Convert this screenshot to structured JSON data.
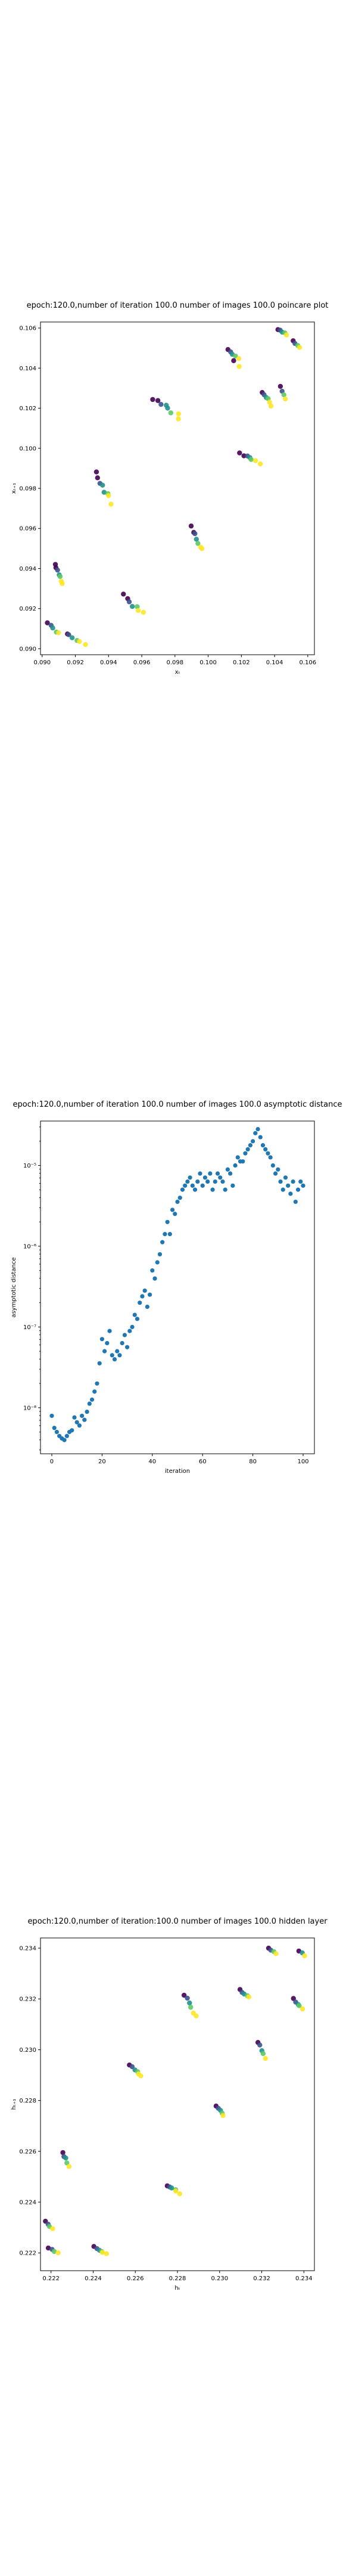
{
  "chart_data": [
    {
      "type": "scatter",
      "title": "epoch:120.0,number of iteration 100.0 number of images 100.0 poincare plot",
      "xlabel": "xₜ",
      "ylabel": "xₜ₊₁",
      "xlim": [
        0.0899,
        0.1064
      ],
      "ylim": [
        0.0897,
        0.1063
      ],
      "x_ticks": [
        "0.090",
        "0.092",
        "0.094",
        "0.096",
        "0.098",
        "0.100",
        "0.102",
        "0.104",
        "0.106"
      ],
      "y_ticks": [
        "0.090",
        "0.092",
        "0.094",
        "0.096",
        "0.098",
        "0.100",
        "0.102",
        "0.104",
        "0.106"
      ],
      "x_tick_values": [
        0.09,
        0.092,
        0.094,
        0.096,
        0.098,
        0.1,
        0.102,
        0.104,
        0.106
      ],
      "y_tick_values": [
        0.09,
        0.092,
        0.094,
        0.096,
        0.098,
        0.1,
        0.102,
        0.104,
        0.106
      ],
      "grid": false,
      "colormap": [
        "#440154",
        "#3b528b",
        "#21908d",
        "#5dc863",
        "#fde725"
      ],
      "clusters": [
        {
          "x": 0.0907,
          "y": 0.091,
          "dx": 0.00035,
          "dy": 0.00025,
          "n": 5
        },
        {
          "x": 0.091,
          "y": 0.0937,
          "dx": 0.00025,
          "dy": 0.0005,
          "n": 7
        },
        {
          "x": 0.092,
          "y": 0.0905,
          "dx": 0.00055,
          "dy": 0.00025,
          "n": 6
        },
        {
          "x": 0.0937,
          "y": 0.098,
          "dx": 0.00045,
          "dy": 0.0007,
          "n": 8
        },
        {
          "x": 0.0955,
          "y": 0.0922,
          "dx": 0.00055,
          "dy": 0.00045,
          "n": 7
        },
        {
          "x": 0.0975,
          "y": 0.102,
          "dx": 0.0008,
          "dy": 0.00045,
          "n": 8
        },
        {
          "x": 0.0993,
          "y": 0.0955,
          "dx": 0.0003,
          "dy": 0.00055,
          "n": 7
        },
        {
          "x": 0.1015,
          "y": 0.1047,
          "dx": 0.0003,
          "dy": 0.00025,
          "n": 5
        },
        {
          "x": 0.1025,
          "y": 0.0995,
          "dx": 0.00055,
          "dy": 0.00025,
          "n": 7
        },
        {
          "x": 0.1017,
          "y": 0.1042,
          "dx": 0.00015,
          "dy": 0.00015,
          "n": 2
        },
        {
          "x": 0.1035,
          "y": 0.1025,
          "dx": 0.0003,
          "dy": 0.00035,
          "n": 6
        },
        {
          "x": 0.1045,
          "y": 0.1058,
          "dx": 0.00025,
          "dy": 0.00015,
          "n": 5
        },
        {
          "x": 0.1045,
          "y": 0.1028,
          "dx": 0.00015,
          "dy": 0.0003,
          "n": 4
        },
        {
          "x": 0.1053,
          "y": 0.1052,
          "dx": 0.0002,
          "dy": 0.00015,
          "n": 4
        }
      ]
    },
    {
      "type": "scatter",
      "title": "epoch:120.0,number of iteration 100.0  number of images 100.0 asymptotic distance",
      "xlabel": "iteration",
      "ylabel": "asymptotic distance",
      "xlim": [
        -4.5,
        104.5
      ],
      "y_scale": "log",
      "ylim_log10": [
        -8.57,
        -4.45
      ],
      "x_ticks": [
        "0",
        "20",
        "40",
        "60",
        "80",
        "100"
      ],
      "x_tick_values": [
        0,
        20,
        40,
        60,
        80,
        100
      ],
      "y_ticks": [
        "10⁻⁸",
        "10⁻⁷",
        "10⁻⁶",
        "10⁻⁵"
      ],
      "y_tick_exponents": [
        -8,
        -7,
        -6,
        -5
      ],
      "grid": false,
      "color": "#1f77b4",
      "x": [
        0,
        1,
        2,
        3,
        4,
        5,
        6,
        7,
        8,
        9,
        10,
        11,
        12,
        13,
        14,
        15,
        16,
        17,
        18,
        19,
        20,
        21,
        22,
        23,
        24,
        25,
        26,
        27,
        28,
        29,
        30,
        31,
        32,
        33,
        34,
        35,
        36,
        37,
        38,
        39,
        40,
        41,
        42,
        43,
        44,
        45,
        46,
        47,
        48,
        49,
        50,
        51,
        52,
        53,
        54,
        55,
        56,
        57,
        58,
        59,
        60,
        61,
        62,
        63,
        64,
        65,
        66,
        67,
        68,
        69,
        70,
        71,
        72,
        73,
        74,
        75,
        76,
        77,
        78,
        79,
        80,
        81,
        82,
        83,
        84,
        85,
        86,
        87,
        88,
        89,
        90,
        91,
        92,
        93,
        94,
        95,
        96,
        97,
        98,
        99,
        100
      ],
      "log10_y": [
        -8.1,
        -8.25,
        -8.3,
        -8.35,
        -8.38,
        -8.4,
        -8.35,
        -8.3,
        -8.28,
        -8.12,
        -8.18,
        -8.22,
        -8.1,
        -8.15,
        -8.05,
        -7.95,
        -7.9,
        -7.8,
        -7.7,
        -7.45,
        -7.15,
        -7.3,
        -7.2,
        -7.05,
        -7.35,
        -7.4,
        -7.3,
        -7.35,
        -7.2,
        -7.1,
        -7.25,
        -7.05,
        -7.0,
        -6.85,
        -6.9,
        -6.7,
        -6.62,
        -6.55,
        -6.75,
        -6.6,
        -6.3,
        -6.4,
        -6.2,
        -6.1,
        -5.95,
        -5.85,
        -5.7,
        -5.85,
        -5.55,
        -5.6,
        -5.45,
        -5.4,
        -5.3,
        -5.25,
        -5.2,
        -5.15,
        -5.25,
        -5.3,
        -5.2,
        -5.1,
        -5.25,
        -5.15,
        -5.2,
        -5.1,
        -5.3,
        -5.2,
        -5.1,
        -5.15,
        -5.2,
        -5.3,
        -5.05,
        -5.1,
        -5.25,
        -5.0,
        -4.9,
        -4.95,
        -4.95,
        -4.85,
        -4.8,
        -4.75,
        -4.7,
        -4.6,
        -4.55,
        -4.65,
        -4.75,
        -4.8,
        -4.85,
        -4.9,
        -5.0,
        -5.1,
        -5.05,
        -5.2,
        -5.3,
        -5.15,
        -5.25,
        -5.35,
        -5.2,
        -5.45,
        -5.3,
        -5.2,
        -5.25
      ]
    },
    {
      "type": "scatter",
      "title": "epoch:120.0,number of iteration:100.0  number of images 100.0 hidden layer",
      "xlabel": "hₜ",
      "ylabel": "hₜ₊₁",
      "xlim": [
        0.2215,
        0.2345
      ],
      "ylim": [
        0.2213,
        0.2344
      ],
      "x_ticks": [
        "0.222",
        "0.224",
        "0.226",
        "0.228",
        "0.230",
        "0.232",
        "0.234"
      ],
      "x_tick_values": [
        0.222,
        0.224,
        0.226,
        0.228,
        0.23,
        0.232,
        0.234
      ],
      "y_ticks": [
        "0.222",
        "0.224",
        "0.226",
        "0.228",
        "0.230",
        "0.232",
        "0.234"
      ],
      "y_tick_values": [
        0.222,
        0.224,
        0.226,
        0.228,
        0.23,
        0.232,
        0.234
      ],
      "grid": false,
      "colormap": [
        "#440154",
        "#3b528b",
        "#21908d",
        "#5dc863",
        "#fde725"
      ],
      "clusters": [
        {
          "x": 0.2219,
          "y": 0.2231,
          "dx": 0.00015,
          "dy": 0.00015,
          "n": 4
        },
        {
          "x": 0.2221,
          "y": 0.2221,
          "dx": 0.0002,
          "dy": 0.0001,
          "n": 4
        },
        {
          "x": 0.2227,
          "y": 0.2257,
          "dx": 0.00015,
          "dy": 0.00025,
          "n": 5
        },
        {
          "x": 0.2243,
          "y": 0.2221,
          "dx": 0.0003,
          "dy": 0.00015,
          "n": 6
        },
        {
          "x": 0.226,
          "y": 0.2292,
          "dx": 0.0003,
          "dy": 0.0002,
          "n": 6
        },
        {
          "x": 0.2278,
          "y": 0.2245,
          "dx": 0.0003,
          "dy": 0.00015,
          "n": 6
        },
        {
          "x": 0.2286,
          "y": 0.2317,
          "dx": 0.00025,
          "dy": 0.00045,
          "n": 6
        },
        {
          "x": 0.23,
          "y": 0.2276,
          "dx": 0.0002,
          "dy": 0.0002,
          "n": 5
        },
        {
          "x": 0.2312,
          "y": 0.2322,
          "dx": 0.0002,
          "dy": 0.00015,
          "n": 5
        },
        {
          "x": 0.232,
          "y": 0.23,
          "dx": 0.00015,
          "dy": 0.0003,
          "n": 5
        },
        {
          "x": 0.2325,
          "y": 0.2339,
          "dx": 0.00015,
          "dy": 0.0001,
          "n": 4
        },
        {
          "x": 0.2337,
          "y": 0.2318,
          "dx": 0.0002,
          "dy": 0.0002,
          "n": 5
        },
        {
          "x": 0.2339,
          "y": 0.2338,
          "dx": 0.00015,
          "dy": 0.0001,
          "n": 3
        }
      ]
    }
  ]
}
